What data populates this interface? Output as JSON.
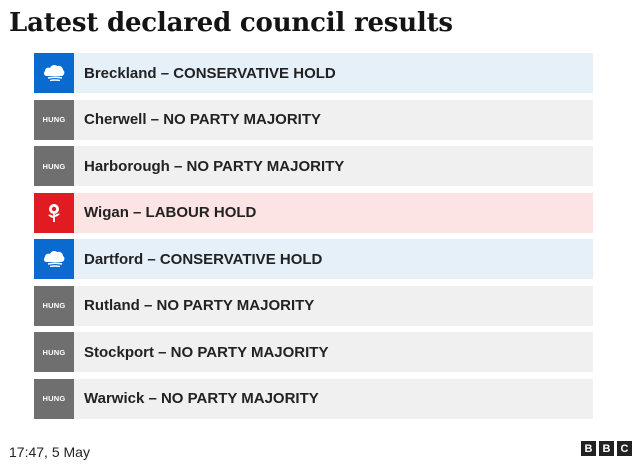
{
  "title": "Latest declared council results",
  "rows": [
    {
      "party": "conservative",
      "icon": "conservative-tree-icon",
      "badge_text": "",
      "label": "Breckland – CONSERVATIVE HOLD"
    },
    {
      "party": "hung",
      "icon": "hung-badge",
      "badge_text": "HUNG",
      "label": "Cherwell – NO PARTY MAJORITY"
    },
    {
      "party": "hung",
      "icon": "hung-badge",
      "badge_text": "HUNG",
      "label": "Harborough – NO PARTY MAJORITY"
    },
    {
      "party": "labour",
      "icon": "labour-rose-icon",
      "badge_text": "",
      "label": "Wigan – LABOUR HOLD"
    },
    {
      "party": "conservative",
      "icon": "conservative-tree-icon",
      "badge_text": "",
      "label": "Dartford – CONSERVATIVE HOLD"
    },
    {
      "party": "hung",
      "icon": "hung-badge",
      "badge_text": "HUNG",
      "label": "Rutland – NO PARTY MAJORITY"
    },
    {
      "party": "hung",
      "icon": "hung-badge",
      "badge_text": "HUNG",
      "label": "Stockport – NO PARTY MAJORITY"
    },
    {
      "party": "hung",
      "icon": "hung-badge",
      "badge_text": "HUNG",
      "label": "Warwick – NO PARTY MAJORITY"
    }
  ],
  "colors": {
    "conservative": "#0a6ad0",
    "labour": "#e01b22",
    "hung": "#6f6f6f"
  },
  "footer": {
    "timestamp": "17:47,  5 May",
    "logo_letters": [
      "B",
      "B",
      "C"
    ]
  }
}
